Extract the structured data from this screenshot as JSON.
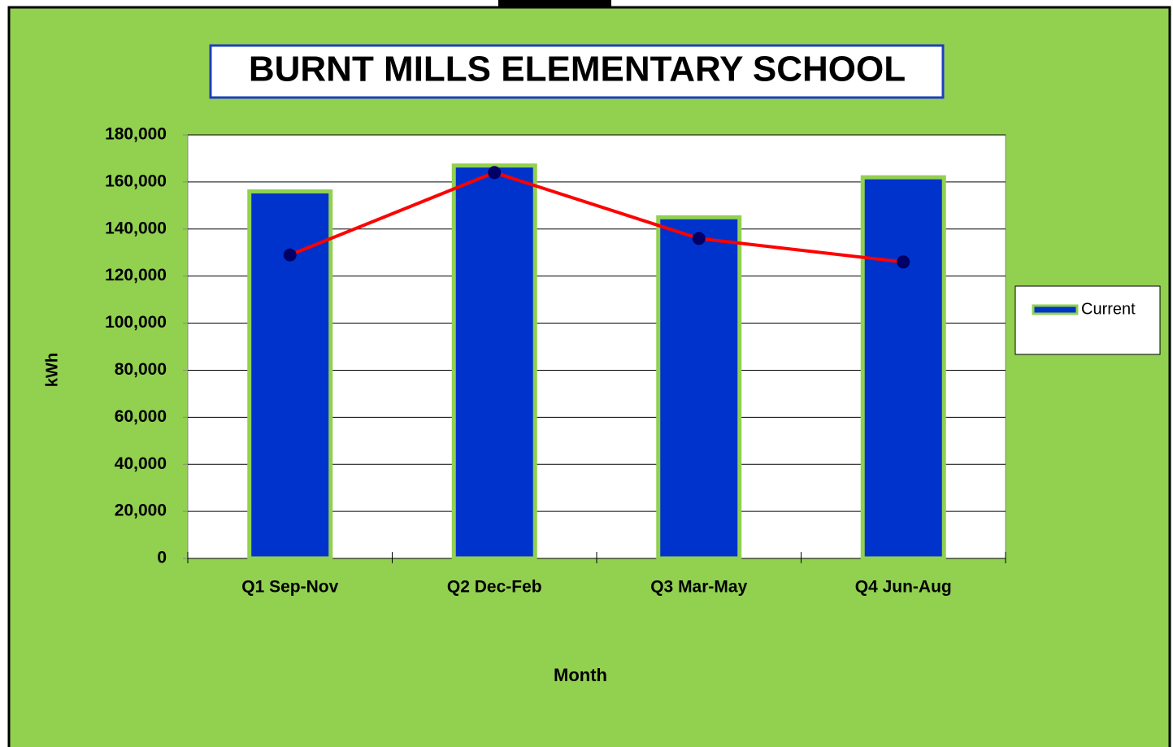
{
  "chart_data": {
    "type": "bar",
    "title": "BURNT MILLS ELEMENTARY SCHOOL",
    "x_label": "Month",
    "y_label": "kWh",
    "categories": [
      "Q1 Sep-Nov",
      "Q2 Dec-Feb",
      "Q3 Mar-May",
      "Q4 Jun-Aug"
    ],
    "series": [
      {
        "name": "Current",
        "type": "bar",
        "color": "#0033cc",
        "values": [
          156000,
          167000,
          145000,
          162000
        ]
      },
      {
        "type": "line",
        "color": "#ff0000",
        "values": [
          129000,
          164000,
          136000,
          126000
        ]
      }
    ],
    "ylim": [
      0,
      180000
    ],
    "yticks": [
      0,
      {
        "value": 20000,
        "label": "20,000"
      },
      {
        "value": 40000,
        "label": "40,000"
      },
      {
        "value": 60000,
        "label": "60,000"
      },
      {
        "value": 80000,
        "label": "80,000"
      },
      {
        "value": 100000,
        "label": "100,000"
      },
      {
        "value": 120000,
        "label": "120,000"
      },
      {
        "value": 140000,
        "label": "140,000"
      },
      {
        "value": 160000,
        "label": "160,000"
      },
      {
        "value": 180000,
        "label": "180,000"
      }
    ],
    "grid": true,
    "legend": "right"
  }
}
